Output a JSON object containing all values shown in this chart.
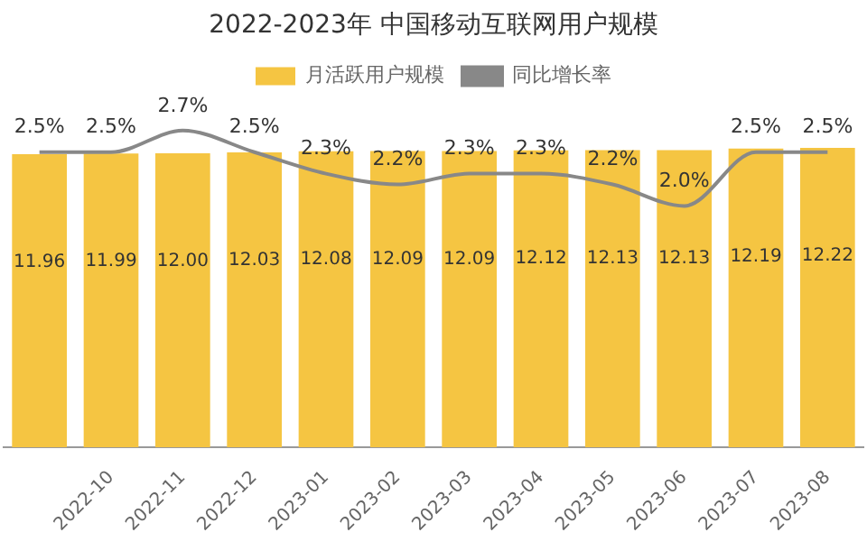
{
  "chart_data": {
    "type": "bar",
    "title": "2022-2023年 中国移动互联网用户规模",
    "categories": [
      null,
      "2022-10",
      "2022-11",
      "2022-12",
      "2023-01",
      "2023-02",
      "2023-03",
      "2023-04",
      "2023-05",
      "2023-06",
      "2023-07",
      "2023-08"
    ],
    "series": [
      {
        "name": "月活跃用户规模",
        "color": "#f5c542",
        "values": [
          11.96,
          11.99,
          12.0,
          12.03,
          12.08,
          12.09,
          12.09,
          12.12,
          12.13,
          12.13,
          12.19,
          12.22
        ],
        "value_labels": [
          "11.96",
          "11.99",
          "12.00",
          "12.03",
          "12.08",
          "12.09",
          "12.09",
          "12.12",
          "12.13",
          "12.13",
          "12.19",
          "12.22"
        ]
      },
      {
        "name": "同比增长率",
        "type": "line",
        "axis": "y2",
        "color": "#888888",
        "values": [
          2.5,
          2.5,
          2.7,
          2.5,
          2.3,
          2.2,
          2.3,
          2.3,
          2.2,
          2.0,
          2.5,
          2.5
        ],
        "value_labels": [
          "2.5%",
          "2.5%",
          "2.7%",
          "2.5%",
          "2.3%",
          "2.2%",
          "2.3%",
          "2.3%",
          "2.2%",
          "2.0%",
          "2.5%",
          "2.5%"
        ]
      }
    ],
    "legend": "top",
    "tick_labels": "x",
    "grid": false,
    "marker": "none"
  }
}
